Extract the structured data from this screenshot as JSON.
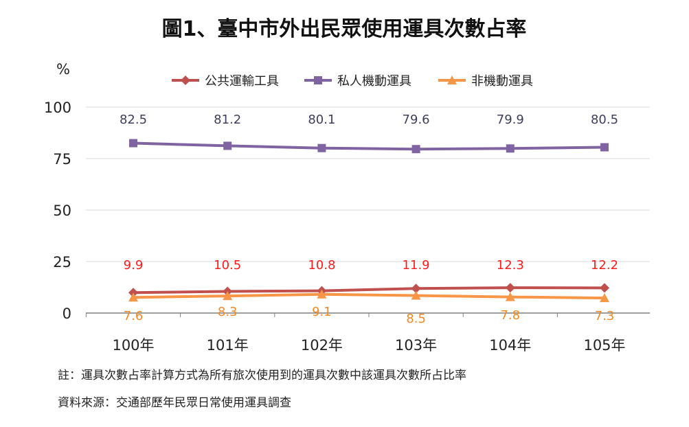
{
  "chart_data": {
    "type": "line",
    "title": "圖1、臺中市外出民眾使用運具次數占率",
    "ylabel": "%",
    "xlabel": "",
    "categories": [
      "100年",
      "101年",
      "102年",
      "103年",
      "104年",
      "105年"
    ],
    "yticks": [
      0,
      25,
      50,
      75,
      100
    ],
    "ylim": [
      0,
      100
    ],
    "grid": true,
    "legend_position": "top",
    "series": [
      {
        "name": "公共運輸工具",
        "color": "#c0504d",
        "label_color": "#ff1a1a",
        "marker": "diamond",
        "values": [
          9.9,
          10.5,
          10.8,
          11.9,
          12.3,
          12.2
        ]
      },
      {
        "name": "私人機動運具",
        "color": "#8064a2",
        "label_color": "#3d3d5c",
        "marker": "square",
        "values": [
          82.5,
          81.2,
          80.1,
          79.6,
          79.9,
          80.5
        ]
      },
      {
        "name": "非機動運具",
        "color": "#f79646",
        "label_color": "#f7861d",
        "marker": "triangle",
        "values": [
          7.6,
          8.3,
          9.1,
          8.5,
          7.8,
          7.3
        ]
      }
    ]
  },
  "notes": {
    "note": "註：運具次數占率計算方式為所有旅次使用到的運具次數中該運具次數所占比率",
    "source": "資料來源：交通部歷年民眾日常使用運具調查"
  }
}
